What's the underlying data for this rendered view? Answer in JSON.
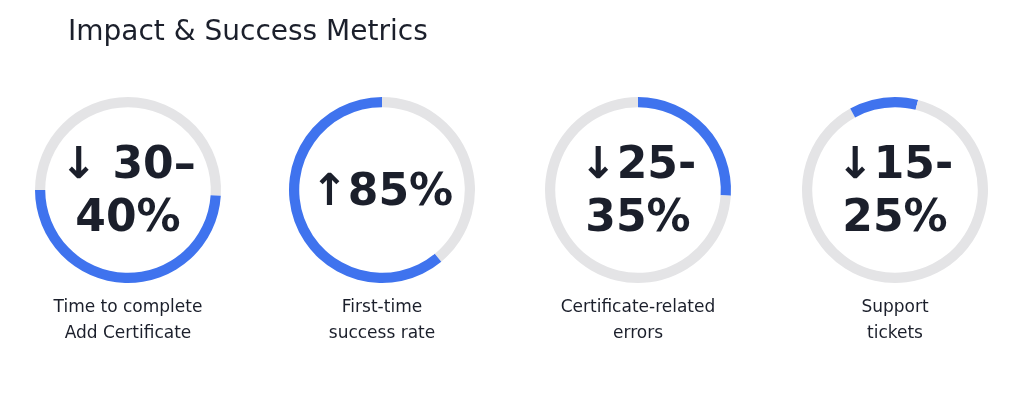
{
  "chart_data": [
    {
      "type": "donut",
      "title": "Impact & Success Metrics",
      "categories": [
        null,
        null,
        null
      ],
      "values": [
        26,
        49,
        25
      ],
      "colors": [
        "#e4e4e6",
        "#3f73ee",
        "#e4e4e6"
      ],
      "annotations": [
        "↓ 30–40%"
      ],
      "xlabel": "Time to complete Add Certificate"
    },
    {
      "type": "donut",
      "categories": [
        null,
        null
      ],
      "values": [
        39,
        61
      ],
      "colors": [
        "#e4e4e6",
        "#3f73ee"
      ],
      "annotations": [
        "↑85%"
      ],
      "xlabel": "First-time success rate"
    },
    {
      "type": "donut",
      "categories": [
        null,
        null
      ],
      "values": [
        26,
        74
      ],
      "colors": [
        "#3f73ee",
        "#e4e4e6"
      ],
      "annotations": [
        "↓25-35%"
      ],
      "xlabel": "Certificate-related errors"
    },
    {
      "type": "donut",
      "categories": [
        null,
        null,
        null
      ],
      "values": [
        4,
        88,
        8
      ],
      "colors": [
        "#3f73ee",
        "#e4e4e6",
        "#3f73ee"
      ],
      "annotations": [
        "↓15-25%"
      ],
      "xlabel": "Support tickets"
    }
  ]
}
